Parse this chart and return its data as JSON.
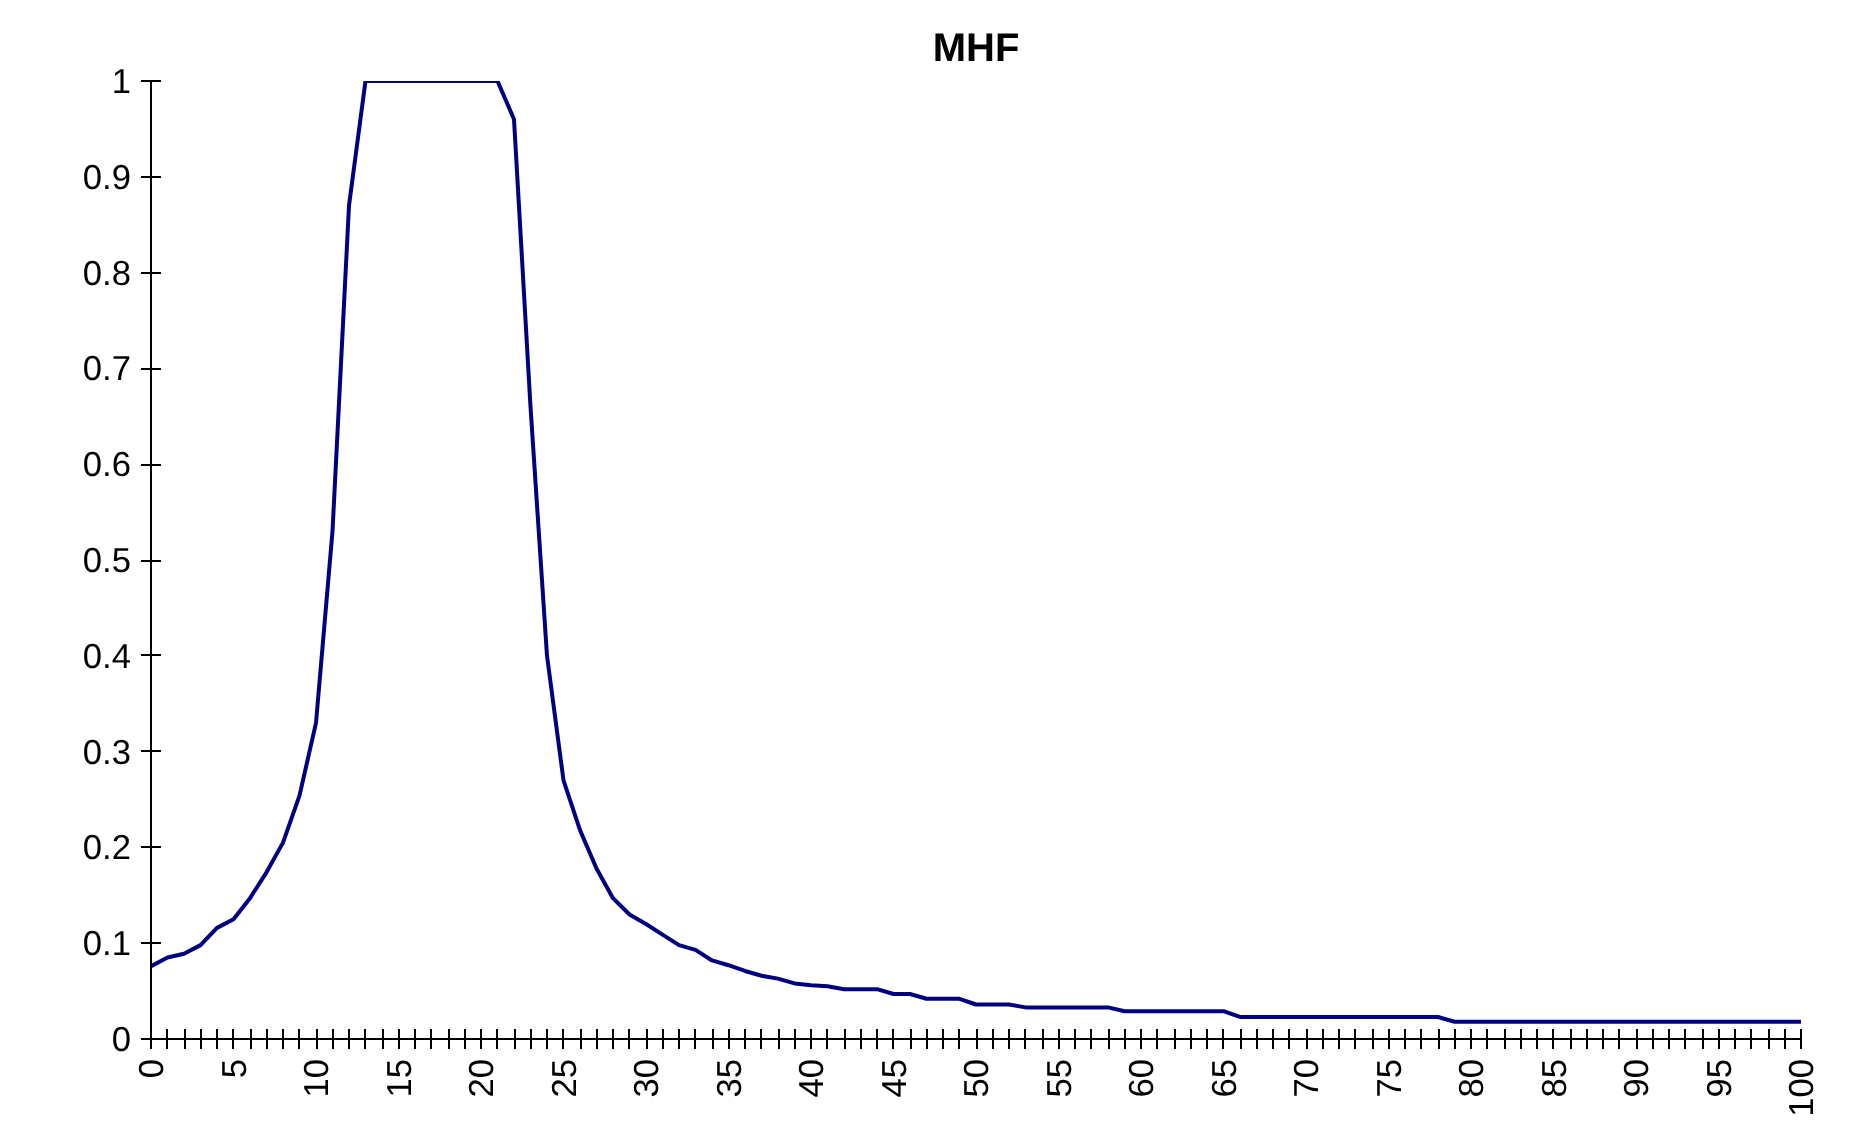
{
  "chart_data": {
    "type": "line",
    "title": "MHF",
    "x": [
      0,
      1,
      2,
      3,
      4,
      5,
      6,
      7,
      8,
      9,
      10,
      11,
      12,
      13,
      14,
      15,
      16,
      17,
      18,
      19,
      20,
      21,
      22,
      23,
      24,
      25,
      26,
      27,
      28,
      29,
      30,
      31,
      32,
      33,
      34,
      35,
      36,
      37,
      38,
      39,
      40,
      41,
      42,
      43,
      44,
      45,
      46,
      47,
      48,
      49,
      50,
      51,
      52,
      53,
      54,
      55,
      56,
      57,
      58,
      59,
      60,
      61,
      62,
      63,
      64,
      65,
      66,
      67,
      68,
      69,
      70,
      71,
      72,
      73,
      74,
      75,
      76,
      77,
      78,
      79,
      80,
      81,
      82,
      83,
      84,
      85,
      86,
      87,
      88,
      89,
      90,
      91,
      92,
      93,
      94,
      95,
      96,
      97,
      98,
      99,
      100
    ],
    "series": [
      {
        "color": "#000080",
        "values": [
          0.076,
          0.085,
          0.089,
          0.098,
          0.116,
          0.125,
          0.147,
          0.174,
          0.205,
          0.254,
          0.33,
          0.53,
          0.87,
          1,
          1,
          1,
          1,
          1,
          1,
          1,
          1,
          1,
          0.96,
          0.66,
          0.4,
          0.27,
          0.218,
          0.178,
          0.147,
          0.13,
          0.12,
          0.109,
          0.098,
          0.093,
          0.082,
          0.077,
          0.071,
          0.066,
          0.063,
          0.058,
          0.056,
          0.055,
          0.052,
          0.052,
          0.052,
          0.047,
          0.047,
          0.042,
          0.042,
          0.042,
          0.036,
          0.036,
          0.036,
          0.033,
          0.033,
          0.033,
          0.033,
          0.033,
          0.033,
          0.029,
          0.029,
          0.029,
          0.029,
          0.029,
          0.029,
          0.029,
          0.023,
          0.023,
          0.023,
          0.023,
          0.023,
          0.023,
          0.023,
          0.023,
          0.023,
          0.023,
          0.023,
          0.023,
          0.023,
          0.018,
          0.018,
          0.018,
          0.018,
          0.018,
          0.018,
          0.018,
          0.018,
          0.018,
          0.018,
          0.018,
          0.018,
          0.018,
          0.018,
          0.018,
          0.018,
          0.018,
          0.018,
          0.018,
          0.018,
          0.018,
          0.018
        ]
      }
    ],
    "xlim": [
      0,
      100
    ],
    "xticks": [
      0,
      {
        "value": 1,
        "label": null
      },
      {
        "value": 2,
        "label": null
      },
      {
        "value": 3,
        "label": null
      },
      {
        "value": 4,
        "label": null
      },
      5,
      {
        "value": 6,
        "label": null
      },
      {
        "value": 7,
        "label": null
      },
      {
        "value": 8,
        "label": null
      },
      {
        "value": 9,
        "label": null
      },
      10,
      {
        "value": 11,
        "label": null
      },
      {
        "value": 12,
        "label": null
      },
      {
        "value": 13,
        "label": null
      },
      {
        "value": 14,
        "label": null
      },
      15,
      {
        "value": 16,
        "label": null
      },
      {
        "value": 17,
        "label": null
      },
      {
        "value": 18,
        "label": null
      },
      {
        "value": 19,
        "label": null
      },
      20,
      {
        "value": 21,
        "label": null
      },
      {
        "value": 22,
        "label": null
      },
      {
        "value": 23,
        "label": null
      },
      {
        "value": 24,
        "label": null
      },
      25,
      {
        "value": 26,
        "label": null
      },
      {
        "value": 27,
        "label": null
      },
      {
        "value": 28,
        "label": null
      },
      {
        "value": 29,
        "label": null
      },
      30,
      {
        "value": 31,
        "label": null
      },
      {
        "value": 32,
        "label": null
      },
      {
        "value": 33,
        "label": null
      },
      {
        "value": 34,
        "label": null
      },
      35,
      {
        "value": 36,
        "label": null
      },
      {
        "value": 37,
        "label": null
      },
      {
        "value": 38,
        "label": null
      },
      {
        "value": 39,
        "label": null
      },
      40,
      {
        "value": 41,
        "label": null
      },
      {
        "value": 42,
        "label": null
      },
      {
        "value": 43,
        "label": null
      },
      {
        "value": 44,
        "label": null
      },
      45,
      {
        "value": 46,
        "label": null
      },
      {
        "value": 47,
        "label": null
      },
      {
        "value": 48,
        "label": null
      },
      {
        "value": 49,
        "label": null
      },
      50,
      {
        "value": 51,
        "label": null
      },
      {
        "value": 52,
        "label": null
      },
      {
        "value": 53,
        "label": null
      },
      {
        "value": 54,
        "label": null
      },
      55,
      {
        "value": 56,
        "label": null
      },
      {
        "value": 57,
        "label": null
      },
      {
        "value": 58,
        "label": null
      },
      {
        "value": 59,
        "label": null
      },
      60,
      {
        "value": 61,
        "label": null
      },
      {
        "value": 62,
        "label": null
      },
      {
        "value": 63,
        "label": null
      },
      {
        "value": 64,
        "label": null
      },
      65,
      {
        "value": 66,
        "label": null
      },
      {
        "value": 67,
        "label": null
      },
      {
        "value": 68,
        "label": null
      },
      {
        "value": 69,
        "label": null
      },
      70,
      {
        "value": 71,
        "label": null
      },
      {
        "value": 72,
        "label": null
      },
      {
        "value": 73,
        "label": null
      },
      {
        "value": 74,
        "label": null
      },
      75,
      {
        "value": 76,
        "label": null
      },
      {
        "value": 77,
        "label": null
      },
      {
        "value": 78,
        "label": null
      },
      {
        "value": 79,
        "label": null
      },
      80,
      {
        "value": 81,
        "label": null
      },
      {
        "value": 82,
        "label": null
      },
      {
        "value": 83,
        "label": null
      },
      {
        "value": 84,
        "label": null
      },
      85,
      {
        "value": 86,
        "label": null
      },
      {
        "value": 87,
        "label": null
      },
      {
        "value": 88,
        "label": null
      },
      {
        "value": 89,
        "label": null
      },
      90,
      {
        "value": 91,
        "label": null
      },
      {
        "value": 92,
        "label": null
      },
      {
        "value": 93,
        "label": null
      },
      {
        "value": 94,
        "label": null
      },
      95,
      {
        "value": 96,
        "label": null
      },
      {
        "value": 97,
        "label": null
      },
      {
        "value": 98,
        "label": null
      },
      {
        "value": 99,
        "label": null
      },
      100
    ],
    "ylim": [
      0,
      1
    ],
    "yticks": [
      0,
      0.1,
      0.2,
      0.3,
      0.4,
      0.5,
      0.6,
      0.7,
      0.8,
      0.9,
      1
    ],
    "grid": false
  }
}
